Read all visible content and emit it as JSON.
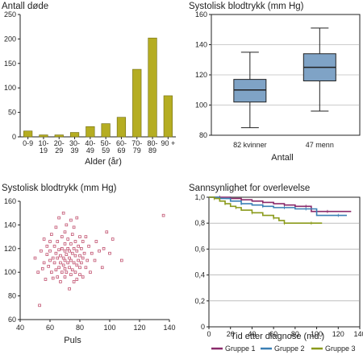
{
  "chart_data": [
    {
      "type": "bar",
      "title": "Antall døde",
      "xlabel": "Alder (år)",
      "ylabel": "",
      "ylim": [
        0,
        250
      ],
      "yticks": [
        0,
        50,
        100,
        150,
        200,
        250
      ],
      "categories": [
        [
          "0-9"
        ],
        [
          "10-",
          "19"
        ],
        [
          "20-",
          "29"
        ],
        [
          "30-",
          "39"
        ],
        [
          "40-",
          "49"
        ],
        [
          "50-",
          "59"
        ],
        [
          "60-",
          "69"
        ],
        [
          "70-",
          "79"
        ],
        [
          "80-",
          "89"
        ],
        [
          "90 +"
        ]
      ],
      "values": [
        12,
        4,
        4,
        9,
        21,
        27,
        40,
        138,
        202,
        84
      ],
      "color": "#b5ad22"
    },
    {
      "type": "box",
      "title": "Systolisk blodtrykk (mm Hg)",
      "xlabel": "Antall",
      "ylim": [
        80,
        160
      ],
      "yticks": [
        80,
        100,
        120,
        140,
        160
      ],
      "grid": true,
      "categories": [
        "82 kvinner",
        "47 menn"
      ],
      "boxes": [
        {
          "whisker_low": 85,
          "q1": 102,
          "median": 110,
          "q3": 117,
          "whisker_high": 135
        },
        {
          "whisker_low": 96,
          "q1": 116,
          "median": 125,
          "q3": 134,
          "whisker_high": 151
        }
      ],
      "color": "#7fa3c6"
    },
    {
      "type": "scatter",
      "title": "Systolisk blodtrykk (mm Hg)",
      "xlabel": "Puls",
      "xlim": [
        40,
        140
      ],
      "ylim": [
        60,
        160
      ],
      "xticks": [
        40,
        60,
        80,
        100,
        120,
        140
      ],
      "yticks": [
        60,
        80,
        100,
        120,
        140,
        160
      ],
      "color": "#c0506e",
      "points": [
        [
          50,
          112
        ],
        [
          52,
          100
        ],
        [
          53,
          72
        ],
        [
          54,
          118
        ],
        [
          55,
          103
        ],
        [
          56,
          108
        ],
        [
          56,
          128
        ],
        [
          57,
          94
        ],
        [
          58,
          115
        ],
        [
          58,
          122
        ],
        [
          59,
          105
        ],
        [
          60,
          110
        ],
        [
          60,
          118
        ],
        [
          60,
          126
        ],
        [
          61,
          100
        ],
        [
          61,
          132
        ],
        [
          62,
          112
        ],
        [
          62,
          95
        ],
        [
          63,
          108
        ],
        [
          63,
          122
        ],
        [
          64,
          102
        ],
        [
          64,
          116
        ],
        [
          64,
          138
        ],
        [
          65,
          96
        ],
        [
          65,
          112
        ],
        [
          65,
          126
        ],
        [
          66,
          104
        ],
        [
          66,
          119
        ],
        [
          66,
          146
        ],
        [
          67,
          92
        ],
        [
          67,
          108
        ],
        [
          67,
          114
        ],
        [
          68,
          100
        ],
        [
          68,
          120
        ],
        [
          68,
          130
        ],
        [
          69,
          106
        ],
        [
          69,
          112
        ],
        [
          69,
          150
        ],
        [
          70,
          96
        ],
        [
          70,
          103
        ],
        [
          70,
          110
        ],
        [
          70,
          118
        ],
        [
          70,
          124
        ],
        [
          70,
          134
        ],
        [
          71,
          100
        ],
        [
          71,
          115
        ],
        [
          71,
          140
        ],
        [
          72,
          108
        ],
        [
          72,
          120
        ],
        [
          72,
          128
        ],
        [
          73,
          86
        ],
        [
          73,
          104
        ],
        [
          73,
          112
        ],
        [
          73,
          118
        ],
        [
          74,
          98
        ],
        [
          74,
          110
        ],
        [
          74,
          124
        ],
        [
          74,
          144
        ],
        [
          75,
          102
        ],
        [
          75,
          116
        ],
        [
          75,
          132
        ],
        [
          76,
          92
        ],
        [
          76,
          108
        ],
        [
          76,
          120
        ],
        [
          76,
          138
        ],
        [
          77,
          100
        ],
        [
          77,
          114
        ],
        [
          77,
          126
        ],
        [
          78,
          94
        ],
        [
          78,
          106
        ],
        [
          78,
          118
        ],
        [
          78,
          146
        ],
        [
          79,
          110
        ],
        [
          79,
          122
        ],
        [
          80,
          98
        ],
        [
          80,
          104
        ],
        [
          80,
          114
        ],
        [
          80,
          130
        ],
        [
          81,
          108
        ],
        [
          81,
          120
        ],
        [
          82,
          96
        ],
        [
          82,
          112
        ],
        [
          82,
          126
        ],
        [
          83,
          116
        ],
        [
          84,
          104
        ],
        [
          84,
          130
        ],
        [
          85,
          110
        ],
        [
          86,
          122
        ],
        [
          87,
          100
        ],
        [
          88,
          116
        ],
        [
          90,
          110
        ],
        [
          91,
          126
        ],
        [
          93,
          118
        ],
        [
          95,
          104
        ],
        [
          96,
          120
        ],
        [
          98,
          134
        ],
        [
          100,
          116
        ],
        [
          102,
          128
        ],
        [
          108,
          110
        ],
        [
          136,
          148
        ]
      ]
    },
    {
      "type": "line",
      "title": "Sannsynlighet for overlevelse",
      "xlabel": "Tid etter diagnose (md.)",
      "xlim": [
        0,
        140
      ],
      "ylim": [
        0,
        1.0
      ],
      "xticks": [
        0,
        20,
        40,
        60,
        80,
        100,
        120,
        140
      ],
      "yticks": [
        0,
        0.2,
        0.4,
        0.6,
        0.8,
        1.0
      ],
      "ytick_labels": [
        "0",
        "0,2",
        "0,4",
        "0,6",
        "0,8",
        "1,0"
      ],
      "grid": true,
      "legend": "bottom",
      "series": [
        {
          "name": "Gruppe 1",
          "color": "#8a2a6a",
          "points": [
            [
              0,
              1.0
            ],
            [
              10,
              1.0
            ],
            [
              20,
              0.99
            ],
            [
              30,
              0.98
            ],
            [
              40,
              0.97
            ],
            [
              50,
              0.96
            ],
            [
              60,
              0.95
            ],
            [
              70,
              0.94
            ],
            [
              80,
              0.93
            ],
            [
              90,
              0.93
            ],
            [
              95,
              0.89
            ],
            [
              110,
              0.89
            ],
            [
              132,
              0.89
            ]
          ]
        },
        {
          "name": "Gruppe 2",
          "color": "#3a7fb5",
          "points": [
            [
              0,
              1.0
            ],
            [
              10,
              0.99
            ],
            [
              20,
              0.97
            ],
            [
              30,
              0.95
            ],
            [
              40,
              0.94
            ],
            [
              50,
              0.93
            ],
            [
              60,
              0.92
            ],
            [
              70,
              0.92
            ],
            [
              80,
              0.91
            ],
            [
              90,
              0.91
            ],
            [
              100,
              0.86
            ],
            [
              120,
              0.86
            ],
            [
              128,
              0.86
            ]
          ]
        },
        {
          "name": "Gruppe 3",
          "color": "#8a9a1a",
          "points": [
            [
              0,
              1.0
            ],
            [
              5,
              0.99
            ],
            [
              10,
              0.97
            ],
            [
              15,
              0.95
            ],
            [
              20,
              0.93
            ],
            [
              25,
              0.92
            ],
            [
              30,
              0.9
            ],
            [
              40,
              0.88
            ],
            [
              50,
              0.86
            ],
            [
              60,
              0.84
            ],
            [
              65,
              0.82
            ],
            [
              70,
              0.8
            ],
            [
              80,
              0.8
            ],
            [
              95,
              0.8
            ],
            [
              105,
              0.8
            ]
          ]
        }
      ]
    }
  ]
}
